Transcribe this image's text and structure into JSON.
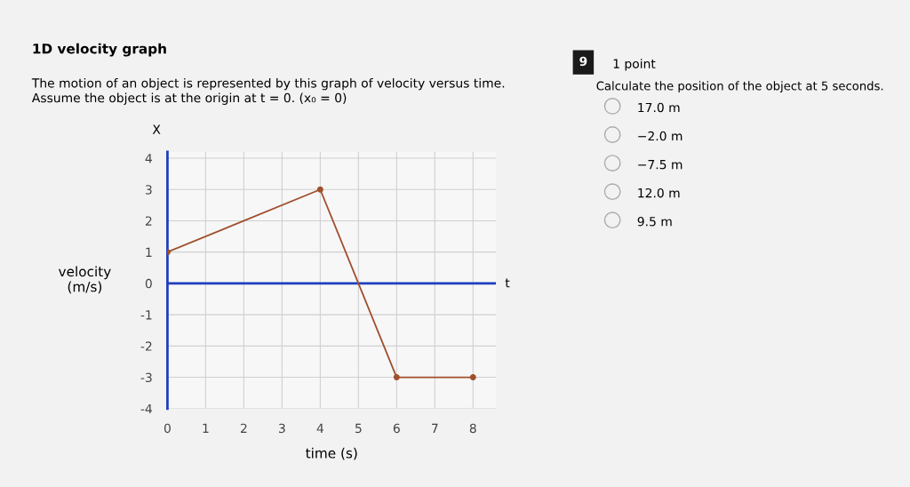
{
  "chart_data": {
    "type": "line",
    "title": "1D velocity graph",
    "subtitle": "The motion of an object is represented by this graph of velocity versus time.\nAssume the object is at the origin at t = 0. (x₀ = 0)",
    "xlabel": "time (s)",
    "ylabel": "velocity\n(m/s)",
    "series": [
      {
        "color": "#a0502d",
        "x": [
          0,
          4,
          6,
          8
        ],
        "values": [
          1,
          3,
          -3,
          -3
        ]
      }
    ],
    "xlim": [
      0,
      8.6
    ],
    "ylim": [
      -4,
      4.2
    ],
    "xticks": [
      0,
      1,
      2,
      3,
      4,
      5,
      6,
      7,
      8
    ],
    "yticks": [
      -4,
      -3,
      -2,
      -1,
      0,
      1,
      2,
      3,
      4
    ],
    "ref_lines": [
      {
        "axis": "y",
        "value": 0,
        "color": "#1f3fbf"
      }
    ],
    "grid": true,
    "marker": "circle",
    "line_style": "solid",
    "annotations": [
      "X",
      "t",
      "9",
      "1 point",
      "Calculate the position of the object at 5 seconds.",
      "17.0 m",
      "−2.0 m",
      "−7.5 m",
      "12.0 m",
      "9.5 m"
    ]
  }
}
